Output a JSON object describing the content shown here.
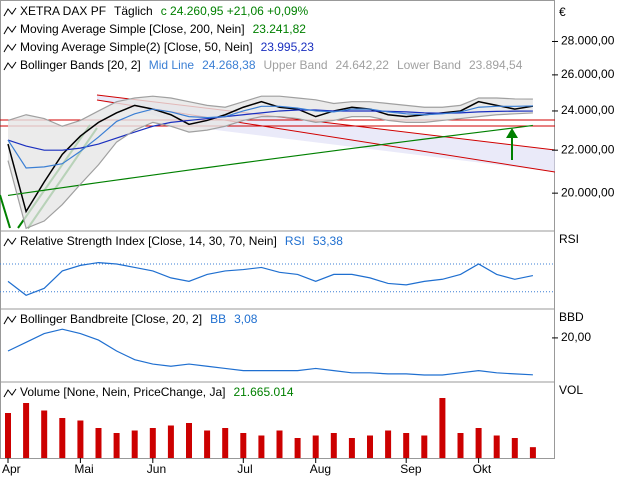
{
  "chart_data": [
    {
      "type": "line",
      "title": "XETRA DAX PF",
      "period": "Täglich",
      "quote": "c 24.260,95  +21,06  +0,09%",
      "quote_color": "#008000",
      "unit": "€",
      "log": true,
      "ylim": [
        18430,
        30360
      ],
      "yticks": [
        {
          "value": 20000,
          "label": "20.000,00"
        },
        {
          "value": 22000,
          "label": "22.000,00"
        },
        {
          "value": 24000,
          "label": "24.000,00"
        },
        {
          "value": 26000,
          "label": "26.000,00"
        },
        {
          "value": 28000,
          "label": "28.000,00"
        }
      ],
      "bands_title": "Bollinger Bands [20, 2]",
      "band_fill": "#e6e6e6",
      "series": [
        {
          "color": "#000000",
          "values": [
            22300,
            19200,
            20500,
            21800,
            22700,
            23400,
            23900,
            24300,
            24100,
            23800,
            23300,
            23500,
            23800,
            24200,
            24500,
            24200,
            24100,
            23700,
            24000,
            24200,
            24100,
            23800,
            23700,
            23800,
            23900,
            24000,
            24500,
            24300,
            24100,
            24260.95
          ]
        },
        {
          "name": "Moving Average Simple [Close, 200, Nein]",
          "value_label": "23.241,82",
          "color": "#008000",
          "values": [
            19900,
            20015,
            20130,
            20245,
            20360,
            20475,
            20590,
            20705,
            20820,
            20935,
            21050,
            21165,
            21280,
            21395,
            21510,
            21625,
            21740,
            21855,
            21970,
            22085,
            22200,
            22315,
            22430,
            22545,
            22660,
            22775,
            22890,
            23005,
            23120,
            23241.82
          ]
        },
        {
          "name": "Moving Average Simple(2) [Close, 50, Nein]",
          "value_label": "23.995,23",
          "color": "#1a2fbf",
          "values": [
            22500,
            22200,
            22000,
            22000,
            22100,
            22300,
            22600,
            22900,
            23200,
            23400,
            23500,
            23600,
            23700,
            23800,
            23900,
            24000,
            24050,
            24050,
            24000,
            24000,
            24000,
            23980,
            23950,
            23900,
            23880,
            23900,
            23950,
            23980,
            23990,
            23995.23
          ]
        },
        {
          "name": "Mid Line",
          "value_label": "24.268,38",
          "color": "#3b7fd4",
          "values": [
            22500,
            21150,
            21200,
            21350,
            21950,
            22650,
            23450,
            23850,
            24100,
            23950,
            23700,
            23650,
            23700,
            24000,
            24250,
            24250,
            24150,
            24000,
            23950,
            24100,
            24100,
            23950,
            23850,
            23800,
            23850,
            23950,
            24200,
            24250,
            24250,
            24268.38
          ]
        },
        {
          "name": "Upper Band",
          "value_label": "24.642,22",
          "color": "#a0a0a0",
          "values": [
            23500,
            23800,
            23600,
            23200,
            23500,
            24000,
            24500,
            24700,
            24800,
            24700,
            24500,
            24300,
            24200,
            24500,
            24800,
            24800,
            24700,
            24600,
            24400,
            24500,
            24500,
            24400,
            24300,
            24200,
            24200,
            24300,
            24700,
            24700,
            24650,
            24642.22
          ]
        },
        {
          "name": "Lower Band",
          "value_label": "23.894,54",
          "color": "#a0a0a0",
          "values": [
            21500,
            18500,
            18800,
            19500,
            20400,
            21300,
            22400,
            23000,
            23400,
            23200,
            22900,
            23000,
            23200,
            23500,
            23700,
            23700,
            23600,
            23400,
            23500,
            23700,
            23700,
            23500,
            23400,
            23400,
            23500,
            23600,
            23700,
            23800,
            23850,
            23894.54
          ]
        }
      ]
    },
    {
      "type": "line",
      "title": "Relative Strength Index [Close, 14, 30, 70, Nein]",
      "unit": "RSI",
      "ylim": [
        11,
        116
      ],
      "levels": [
        30,
        70
      ],
      "level_color": "#3b7fd4",
      "series": [
        {
          "name": "RSI",
          "value_label": "53,38",
          "color": "#1f6fd0",
          "values": [
            45,
            25,
            35,
            60,
            68,
            72,
            70,
            65,
            60,
            50,
            45,
            55,
            60,
            62,
            65,
            58,
            55,
            45,
            55,
            55,
            50,
            42,
            40,
            45,
            48,
            55,
            70,
            55,
            48,
            53.38
          ]
        }
      ]
    },
    {
      "type": "line",
      "title": "Bollinger Bandbreite [Close, 20, 2]",
      "unit": "BBD",
      "ylim": [
        0.7,
        32.8
      ],
      "yticks": [
        {
          "value": 20,
          "label": "20,00"
        }
      ],
      "series": [
        {
          "name": "BB",
          "value_label": "3,08",
          "color": "#1f6fd0",
          "values": [
            14,
            18,
            22,
            24,
            22,
            19,
            14,
            10,
            8,
            7,
            8,
            7,
            6,
            5,
            5,
            5,
            5,
            6,
            5,
            4,
            4,
            3.5,
            3.5,
            3,
            3,
            4,
            5,
            4,
            3.5,
            3.08
          ]
        }
      ]
    },
    {
      "type": "bar",
      "title": "Volume [None, Nein, PriceChange, Ja]",
      "unit": "VOL",
      "ylim": [
        0,
        150000000
      ],
      "categories": [
        "Apr",
        null,
        null,
        null,
        "Mai",
        null,
        null,
        null,
        "Jun",
        null,
        null,
        null,
        null,
        "Jul",
        null,
        null,
        null,
        "Aug",
        null,
        null,
        null,
        null,
        "Sep",
        null,
        null,
        null,
        "Okt",
        null,
        null,
        null
      ],
      "series": [
        {
          "value_label": "21.665.014",
          "color": "#cc0000",
          "values": [
            90000000,
            110000000,
            95000000,
            80000000,
            75000000,
            60000000,
            50000000,
            55000000,
            60000000,
            65000000,
            70000000,
            55000000,
            60000000,
            50000000,
            45000000,
            55000000,
            40000000,
            45000000,
            50000000,
            40000000,
            45000000,
            55000000,
            50000000,
            45000000,
            120000000,
            50000000,
            60000000,
            45000000,
            40000000,
            21665014
          ]
        }
      ]
    }
  ]
}
